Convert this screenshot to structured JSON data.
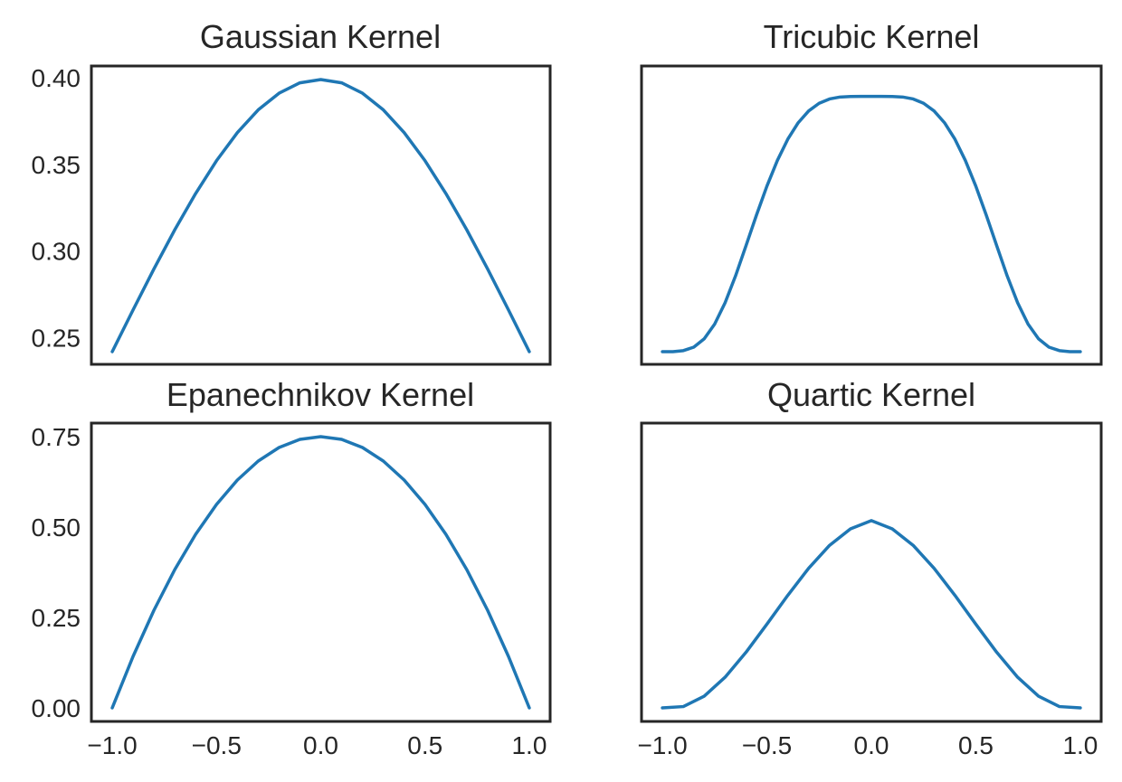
{
  "figure": {
    "background": "#ffffff",
    "line_color": "#1f77b4"
  },
  "chart_data": [
    {
      "type": "line",
      "title": "Gaussian Kernel",
      "xlabel": "",
      "ylabel": "",
      "xlim": [
        -1.1,
        1.1
      ],
      "ylim": [
        0.2347,
        0.4067
      ],
      "x_ticks": [],
      "y_ticks": [
        "0.25",
        "0.30",
        "0.35",
        "0.40"
      ],
      "grid": false,
      "series": [
        {
          "x": [
            -1.0,
            -0.9,
            -0.8,
            -0.7,
            -0.6,
            -0.5,
            -0.4,
            -0.3,
            -0.2,
            -0.1,
            0.0,
            0.1,
            0.2,
            0.3,
            0.4,
            0.5,
            0.6,
            0.7,
            0.8,
            0.9,
            1.0
          ],
          "values": [
            0.242,
            0.2661,
            0.2897,
            0.3123,
            0.3332,
            0.3521,
            0.3683,
            0.3814,
            0.391,
            0.397,
            0.3989,
            0.397,
            0.391,
            0.3814,
            0.3683,
            0.3521,
            0.3332,
            0.3123,
            0.2897,
            0.2661,
            0.242
          ]
        }
      ]
    },
    {
      "type": "line",
      "title": "Tricubic Kernel",
      "xlabel": "",
      "ylabel": "",
      "xlim": [
        -1.1,
        1.1
      ],
      "ylim": [
        0.2347,
        0.4067
      ],
      "x_ticks": [],
      "y_ticks": [],
      "grid": false,
      "series": [
        {
          "x": [
            -1.0,
            -0.95,
            -0.9,
            -0.85,
            -0.8,
            -0.75,
            -0.7,
            -0.65,
            -0.6,
            -0.55,
            -0.5,
            -0.45,
            -0.4,
            -0.35,
            -0.3,
            -0.25,
            -0.2,
            -0.15,
            -0.1,
            -0.05,
            0.0,
            0.05,
            0.1,
            0.15,
            0.2,
            0.25,
            0.3,
            0.35,
            0.4,
            0.45,
            0.5,
            0.55,
            0.6,
            0.65,
            0.7,
            0.75,
            0.8,
            0.85,
            0.9,
            0.95,
            1.0
          ],
          "values": [
            0.242,
            0.242,
            0.2426,
            0.2446,
            0.2494,
            0.2579,
            0.2702,
            0.2857,
            0.3031,
            0.3207,
            0.3374,
            0.3522,
            0.3645,
            0.374,
            0.3808,
            0.3852,
            0.3877,
            0.3888,
            0.3891,
            0.3892,
            0.3892,
            0.3892,
            0.3891,
            0.3888,
            0.3877,
            0.3852,
            0.3808,
            0.374,
            0.3645,
            0.3522,
            0.3374,
            0.3207,
            0.3031,
            0.2857,
            0.2702,
            0.2579,
            0.2494,
            0.2446,
            0.2426,
            0.242,
            0.242
          ]
        }
      ]
    },
    {
      "type": "line",
      "title": "Epanechnikov Kernel",
      "xlabel": "",
      "ylabel": "",
      "xlim": [
        -1.1,
        1.1
      ],
      "ylim": [
        -0.0375,
        0.7875
      ],
      "x_ticks": [
        "−1.0",
        "−0.5",
        "0.0",
        "0.5",
        "1.0"
      ],
      "y_ticks": [
        "0.00",
        "0.25",
        "0.50",
        "0.75"
      ],
      "grid": false,
      "series": [
        {
          "x": [
            -1.0,
            -0.9,
            -0.8,
            -0.7,
            -0.6,
            -0.5,
            -0.4,
            -0.3,
            -0.2,
            -0.1,
            0.0,
            0.1,
            0.2,
            0.3,
            0.4,
            0.5,
            0.6,
            0.7,
            0.8,
            0.9,
            1.0
          ],
          "values": [
            0.0,
            0.1425,
            0.27,
            0.3825,
            0.48,
            0.5625,
            0.63,
            0.6825,
            0.72,
            0.7425,
            0.75,
            0.7425,
            0.72,
            0.6825,
            0.63,
            0.5625,
            0.48,
            0.3825,
            0.27,
            0.1425,
            0.0
          ]
        }
      ]
    },
    {
      "type": "line",
      "title": "Quartic Kernel",
      "xlabel": "",
      "ylabel": "",
      "xlim": [
        -1.1,
        1.1
      ],
      "ylim": [
        -0.0375,
        0.7875
      ],
      "x_ticks": [
        "−1.0",
        "−0.5",
        "0.0",
        "0.5",
        "1.0"
      ],
      "y_ticks": [],
      "grid": false,
      "series": [
        {
          "x": [
            -1.0,
            -0.9,
            -0.8,
            -0.7,
            -0.6,
            -0.5,
            -0.4,
            -0.3,
            -0.2,
            -0.1,
            0.0,
            0.1,
            0.2,
            0.3,
            0.4,
            0.5,
            0.6,
            0.7,
            0.8,
            0.9,
            1.0
          ],
          "values": [
            0.0,
            0.0036,
            0.0324,
            0.0848,
            0.1536,
            0.2314,
            0.3112,
            0.3862,
            0.4495,
            0.4951,
            0.5179,
            0.4951,
            0.4495,
            0.3862,
            0.3112,
            0.2314,
            0.1536,
            0.0848,
            0.0324,
            0.0036,
            0.0
          ]
        }
      ]
    }
  ]
}
